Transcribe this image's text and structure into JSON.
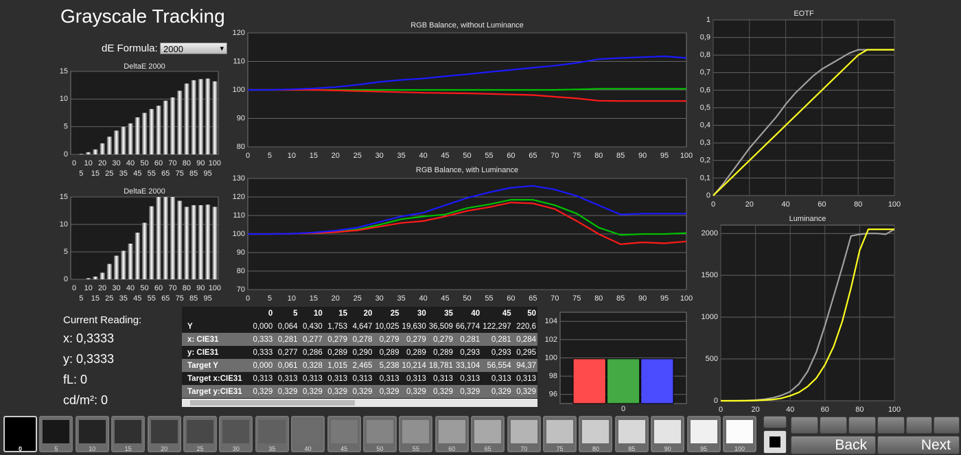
{
  "title": "Grayscale Tracking",
  "formula": {
    "label": "dE Formula:",
    "value": "2000"
  },
  "chart_data": [
    {
      "type": "bar",
      "title": "DeltaE 2000",
      "categories": [
        "0",
        "5",
        "10",
        "15",
        "20",
        "25",
        "30",
        "35",
        "40",
        "45",
        "50",
        "55",
        "60",
        "65",
        "70",
        "75",
        "80",
        "85",
        "90",
        "95",
        "100"
      ],
      "values": [
        0,
        0.1,
        0.4,
        0.9,
        2,
        3.2,
        4.3,
        5,
        5.6,
        6.7,
        7.5,
        8.2,
        8.8,
        9.7,
        10.3,
        11.5,
        12.8,
        13.4,
        13.6,
        13.7,
        13.2
      ],
      "ylim": [
        0,
        15
      ],
      "yticks": [
        0,
        5,
        10,
        15
      ],
      "grid": "y"
    },
    {
      "type": "bar",
      "title": "DeltaE 2000",
      "categories": [
        "0",
        "5",
        "10",
        "15",
        "20",
        "25",
        "30",
        "35",
        "40",
        "45",
        "50",
        "55",
        "60",
        "65",
        "70",
        "75",
        "80",
        "85",
        "90",
        "95",
        "100"
      ],
      "values": [
        0,
        0,
        0.2,
        0.5,
        1.2,
        2.8,
        4.3,
        5.2,
        6.5,
        8.5,
        10.3,
        13.3,
        15,
        15,
        15,
        14.3,
        13.2,
        13.5,
        13.5,
        13.6,
        13.2
      ],
      "ylim": [
        0,
        15
      ],
      "yticks": [
        0,
        5,
        10,
        15
      ],
      "grid": "y"
    },
    {
      "type": "line",
      "title": "RGB Balance, without Luminance",
      "x": [
        0,
        5,
        10,
        15,
        20,
        25,
        30,
        35,
        40,
        45,
        50,
        55,
        60,
        65,
        70,
        75,
        80,
        85,
        90,
        95,
        100
      ],
      "xlim": [
        0,
        100
      ],
      "xticks": [
        0,
        5,
        10,
        15,
        20,
        25,
        30,
        35,
        40,
        45,
        50,
        55,
        60,
        65,
        70,
        75,
        80,
        85,
        90,
        95,
        100
      ],
      "ylim": [
        80,
        120
      ],
      "yticks": [
        80,
        90,
        100,
        110,
        120
      ],
      "grid": "y",
      "series": [
        {
          "color": "#00c000",
          "values": [
            100,
            100,
            100,
            100,
            100,
            100,
            100,
            100,
            100,
            100,
            100,
            100,
            100,
            100,
            100,
            100.2,
            100.4,
            100.4,
            100.4,
            100.4,
            100.4
          ]
        },
        {
          "color": "#ff1a1a",
          "values": [
            100,
            100,
            100,
            100,
            99.8,
            99.6,
            99.4,
            99.2,
            99,
            98.9,
            98.8,
            98.6,
            98.4,
            98.2,
            97.6,
            97,
            96.2,
            96.1,
            96.1,
            96.1,
            96.1
          ]
        },
        {
          "color": "#1a1aff",
          "values": [
            100,
            100,
            100.2,
            100.5,
            101,
            101.8,
            102.8,
            103.5,
            104,
            104.8,
            105.5,
            106.3,
            107,
            107.8,
            108.5,
            109.5,
            110.8,
            111.2,
            111.5,
            111.8,
            111.2
          ]
        }
      ]
    },
    {
      "type": "line",
      "title": "RGB Balance, with Luminance",
      "x": [
        0,
        5,
        10,
        15,
        20,
        25,
        30,
        35,
        40,
        45,
        50,
        55,
        60,
        65,
        70,
        75,
        80,
        85,
        90,
        95,
        100
      ],
      "xlim": [
        0,
        100
      ],
      "xticks": [
        0,
        5,
        10,
        15,
        20,
        25,
        30,
        35,
        40,
        45,
        50,
        55,
        60,
        65,
        70,
        75,
        80,
        85,
        90,
        95,
        100
      ],
      "ylim": [
        70,
        130
      ],
      "yticks": [
        70,
        80,
        90,
        100,
        110,
        120,
        130
      ],
      "grid": "y",
      "series": [
        {
          "color": "#00c000",
          "values": [
            100,
            100,
            100.2,
            100.5,
            101,
            102.5,
            105,
            108,
            109.5,
            110.5,
            114,
            116,
            118.5,
            118.5,
            115.5,
            111,
            103.5,
            99.5,
            100,
            100,
            100.5
          ]
        },
        {
          "color": "#ff1a1a",
          "values": [
            100,
            100,
            100.2,
            100.5,
            101,
            102,
            104,
            106,
            107,
            109.5,
            112.5,
            114.5,
            117,
            116.5,
            113.5,
            107,
            100,
            94.5,
            95.5,
            95,
            96
          ]
        },
        {
          "color": "#1a1aff",
          "values": [
            100,
            100,
            100.2,
            100.8,
            101.8,
            103.5,
            106.5,
            109.5,
            111.5,
            115.5,
            119.5,
            122.5,
            125,
            126,
            124,
            120.5,
            115.5,
            110.5,
            111,
            111,
            111
          ]
        }
      ]
    },
    {
      "type": "line",
      "title": "EOTF",
      "x": [
        0,
        5,
        10,
        15,
        20,
        25,
        30,
        35,
        40,
        45,
        50,
        55,
        60,
        65,
        70,
        75,
        80,
        85,
        90,
        95,
        100
      ],
      "xlim": [
        0,
        100
      ],
      "xticks": [
        0,
        20,
        40,
        60,
        80,
        100
      ],
      "ylim": [
        0,
        1
      ],
      "yticks": [
        0,
        {
          "value": 0.1,
          "label": "0,1"
        },
        {
          "value": 0.2,
          "label": "0,2"
        },
        {
          "value": 0.3,
          "label": "0,3"
        },
        {
          "value": 0.4,
          "label": "0,4"
        },
        {
          "value": 0.5,
          "label": "0,5"
        },
        {
          "value": 0.6,
          "label": "0,6"
        },
        {
          "value": 0.7,
          "label": "0,7"
        },
        {
          "value": 0.8,
          "label": "0,8"
        },
        {
          "value": 0.9,
          "label": "0,9"
        },
        1
      ],
      "grid": "both",
      "series": [
        {
          "color": "#a0a0a0",
          "values": [
            0,
            0.06,
            0.13,
            0.2,
            0.27,
            0.33,
            0.39,
            0.45,
            0.52,
            0.58,
            0.63,
            0.68,
            0.72,
            0.75,
            0.78,
            0.81,
            0.83,
            0.83,
            0.83,
            0.83,
            0.83
          ]
        },
        {
          "color": "#ffff20",
          "values": [
            0,
            0.05,
            0.1,
            0.15,
            0.2,
            0.25,
            0.3,
            0.35,
            0.4,
            0.45,
            0.5,
            0.55,
            0.6,
            0.65,
            0.7,
            0.75,
            0.8,
            0.83,
            0.83,
            0.83,
            0.83
          ]
        }
      ]
    },
    {
      "type": "line",
      "title": "Luminance",
      "x": [
        0,
        5,
        10,
        15,
        20,
        25,
        30,
        35,
        40,
        45,
        50,
        55,
        60,
        65,
        70,
        75,
        80,
        85,
        90,
        95,
        100
      ],
      "xlim": [
        0,
        100
      ],
      "xticks": [
        0,
        20,
        40,
        60,
        80,
        100
      ],
      "ylim": [
        0,
        2100
      ],
      "yticks": [
        0,
        500,
        1000,
        1500,
        2000
      ],
      "grid": "both",
      "series": [
        {
          "color": "#a0a0a0",
          "values": [
            0,
            0,
            1,
            3,
            8,
            18,
            35,
            65,
            110,
            200,
            350,
            580,
            900,
            1250,
            1600,
            1970,
            1990,
            2000,
            2000,
            1990,
            2050
          ]
        },
        {
          "color": "#ffff20",
          "values": [
            0,
            0,
            0,
            1,
            3,
            8,
            15,
            30,
            60,
            100,
            170,
            270,
            430,
            650,
            950,
            1350,
            1800,
            2050,
            2050,
            2050,
            2050
          ]
        }
      ]
    },
    {
      "type": "groupbar",
      "categories": [
        "0"
      ],
      "ylim": [
        95,
        105
      ],
      "yticks": [
        96,
        98,
        100,
        102,
        104
      ],
      "grid": "y",
      "series": [
        {
          "color": "#ff4b4b",
          "values": [
            99.9
          ]
        },
        {
          "color": "#44aa44",
          "values": [
            99.9
          ]
        },
        {
          "color": "#4b4bff",
          "values": [
            99.9
          ]
        }
      ]
    }
  ],
  "reading": {
    "heading": "Current Reading:",
    "lines": [
      "x: 0,3333",
      "y: 0,3333",
      "fL: 0",
      "cd/m²: 0"
    ]
  },
  "table": {
    "columns": [
      "0",
      "5",
      "10",
      "15",
      "20",
      "25",
      "30",
      "35",
      "40",
      "45",
      "50"
    ],
    "rows": [
      [
        "Y",
        "0,000",
        "0,064",
        "0,430",
        "1,753",
        "4,647",
        "10,025",
        "19,630",
        "36,509",
        "66,774",
        "122,297",
        "220,6"
      ],
      [
        "x: CIE31",
        "0,333",
        "0,281",
        "0,277",
        "0,279",
        "0,278",
        "0,279",
        "0,279",
        "0,279",
        "0,281",
        "0,281",
        "0,284"
      ],
      [
        "y: CIE31",
        "0,333",
        "0,277",
        "0,286",
        "0,289",
        "0,290",
        "0,289",
        "0,289",
        "0,289",
        "0,293",
        "0,293",
        "0,295"
      ],
      [
        "Target Y",
        "0,000",
        "0,061",
        "0,328",
        "1,015",
        "2,465",
        "5,238",
        "10,214",
        "18,781",
        "33,104",
        "56,554",
        "94,37"
      ],
      [
        "Target x:CIE31",
        "0,313",
        "0,313",
        "0,313",
        "0,313",
        "0,313",
        "0,313",
        "0,313",
        "0,313",
        "0,313",
        "0,313",
        "0,313"
      ],
      [
        "Target y:CIE31",
        "0,329",
        "0,329",
        "0,329",
        "0,329",
        "0,329",
        "0,329",
        "0,329",
        "0,329",
        "0,329",
        "0,329",
        "0,329"
      ]
    ]
  },
  "swatches": [
    "0",
    "5",
    "10",
    "15",
    "20",
    "25",
    "30",
    "35",
    "40",
    "45",
    "50",
    "55",
    "60",
    "65",
    "70",
    "75",
    "80",
    "85",
    "90",
    "95",
    "100"
  ],
  "buttons": {
    "back": "Back",
    "next": "Next"
  }
}
